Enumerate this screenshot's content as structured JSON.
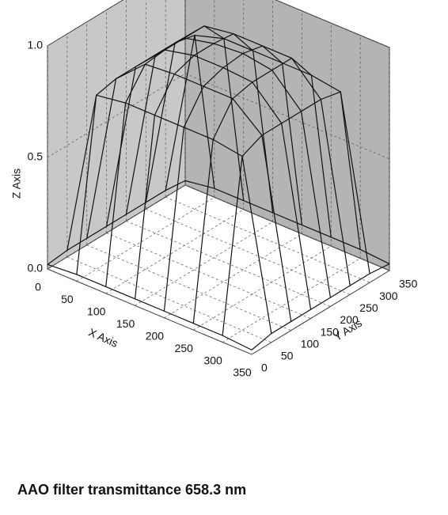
{
  "chart_data": {
    "type": "surface",
    "title": "AAO filter transmittance 658.3 nm",
    "x_label": "X Axis",
    "y_label": "Y Axis",
    "z_label": "Z Axis",
    "x": [
      0,
      50,
      100,
      150,
      200,
      250,
      300,
      350
    ],
    "y": [
      0,
      50,
      100,
      150,
      200,
      250,
      300,
      350
    ],
    "z": [
      [
        0.02,
        0.03,
        0.03,
        0.03,
        0.03,
        0.03,
        0.03,
        0.02
      ],
      [
        0.03,
        0.78,
        0.8,
        0.8,
        0.8,
        0.8,
        0.78,
        0.04
      ],
      [
        0.03,
        0.8,
        0.92,
        0.93,
        0.93,
        0.93,
        0.82,
        0.04
      ],
      [
        0.03,
        0.8,
        0.93,
        0.96,
        0.96,
        0.95,
        0.82,
        0.04
      ],
      [
        0.03,
        0.8,
        0.93,
        0.96,
        0.97,
        0.95,
        0.82,
        0.04
      ],
      [
        0.03,
        0.8,
        0.93,
        0.95,
        0.95,
        0.95,
        0.82,
        0.04
      ],
      [
        0.03,
        0.78,
        0.82,
        0.82,
        0.82,
        0.82,
        0.8,
        0.04
      ],
      [
        0.02,
        0.04,
        0.04,
        0.04,
        0.04,
        0.04,
        0.04,
        0.03
      ]
    ],
    "color": "#111111",
    "xlim": [
      0,
      350
    ],
    "ylim": [
      0,
      350
    ],
    "zlim": [
      0,
      1
    ],
    "xticks": [
      0,
      50,
      100,
      150,
      200,
      250,
      300,
      350
    ],
    "yticks": [
      0,
      50,
      100,
      150,
      200,
      250,
      300,
      350
    ],
    "zticks": [
      {
        "value": 0,
        "label": "0.0"
      },
      0.5,
      {
        "value": 1,
        "label": "1.0"
      }
    ],
    "grid": true
  }
}
